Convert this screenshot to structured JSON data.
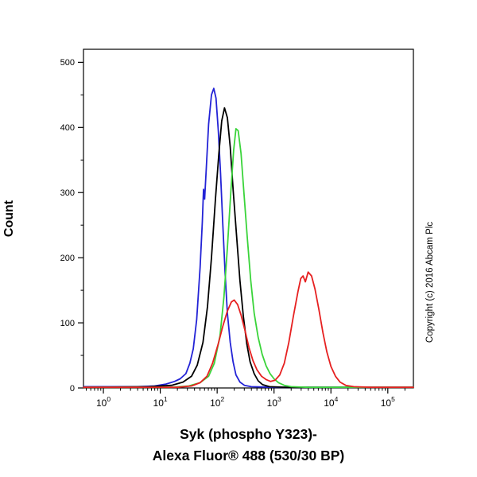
{
  "chart": {
    "ylabel": "Count",
    "xlabel_line1": "Syk (phospho Y323)-",
    "xlabel_line2": "Alexa Fluor® 488 (530/30 BP)",
    "copyright": "Copyright (c) 2016 Abcam Plc"
  },
  "chart_data": {
    "type": "line",
    "subtype": "flow-cytometry-histogram",
    "title": "",
    "xlabel": "Syk (phospho Y323)- Alexa Fluor® 488 (530/30 BP)",
    "ylabel": "Count",
    "x_scale": "log10",
    "grid": false,
    "legend": "none",
    "x_tick_exponents": [
      0,
      1,
      2,
      3,
      4,
      5
    ],
    "y_ticks": [
      0,
      100,
      200,
      300,
      400,
      500
    ],
    "y_minor_step": 50,
    "xlim_log10": [
      -0.35,
      5.45
    ],
    "ylim": [
      0,
      520
    ],
    "axis_color": "#000000",
    "series": [
      {
        "name": "blue",
        "color": "#2323d6",
        "peak": {
          "x_log10": 1.94,
          "count": 460
        },
        "points": [
          [
            -0.35,
            2
          ],
          [
            0.6,
            2
          ],
          [
            0.9,
            3
          ],
          [
            1.1,
            6
          ],
          [
            1.25,
            10
          ],
          [
            1.35,
            14
          ],
          [
            1.45,
            22
          ],
          [
            1.52,
            38
          ],
          [
            1.58,
            60
          ],
          [
            1.64,
            105
          ],
          [
            1.7,
            185
          ],
          [
            1.74,
            255
          ],
          [
            1.76,
            305
          ],
          [
            1.78,
            290
          ],
          [
            1.81,
            340
          ],
          [
            1.85,
            405
          ],
          [
            1.9,
            450
          ],
          [
            1.94,
            460
          ],
          [
            1.98,
            445
          ],
          [
            2.02,
            395
          ],
          [
            2.06,
            330
          ],
          [
            2.1,
            250
          ],
          [
            2.14,
            175
          ],
          [
            2.18,
            115
          ],
          [
            2.23,
            70
          ],
          [
            2.28,
            40
          ],
          [
            2.33,
            20
          ],
          [
            2.4,
            9
          ],
          [
            2.48,
            4
          ],
          [
            2.6,
            2
          ],
          [
            3.0,
            1
          ],
          [
            4.0,
            1
          ],
          [
            5.45,
            1
          ]
        ]
      },
      {
        "name": "black",
        "color": "#000000",
        "peak": {
          "x_log10": 2.13,
          "count": 430
        },
        "points": [
          [
            -0.35,
            1
          ],
          [
            0.8,
            2
          ],
          [
            1.2,
            4
          ],
          [
            1.4,
            9
          ],
          [
            1.55,
            18
          ],
          [
            1.65,
            35
          ],
          [
            1.75,
            70
          ],
          [
            1.83,
            125
          ],
          [
            1.9,
            200
          ],
          [
            1.97,
            290
          ],
          [
            2.03,
            360
          ],
          [
            2.08,
            410
          ],
          [
            2.13,
            430
          ],
          [
            2.18,
            415
          ],
          [
            2.23,
            370
          ],
          [
            2.28,
            305
          ],
          [
            2.34,
            235
          ],
          [
            2.4,
            165
          ],
          [
            2.46,
            110
          ],
          [
            2.52,
            68
          ],
          [
            2.58,
            40
          ],
          [
            2.65,
            22
          ],
          [
            2.72,
            11
          ],
          [
            2.8,
            5
          ],
          [
            2.92,
            2
          ],
          [
            3.2,
            1
          ],
          [
            5.45,
            1
          ]
        ]
      },
      {
        "name": "green",
        "color": "#3ad43a",
        "peak": {
          "x_log10": 2.33,
          "count": 398
        },
        "points": [
          [
            -0.35,
            1
          ],
          [
            1.2,
            1
          ],
          [
            1.5,
            3
          ],
          [
            1.7,
            8
          ],
          [
            1.85,
            18
          ],
          [
            1.95,
            38
          ],
          [
            2.05,
            80
          ],
          [
            2.12,
            140
          ],
          [
            2.18,
            215
          ],
          [
            2.24,
            300
          ],
          [
            2.29,
            365
          ],
          [
            2.33,
            398
          ],
          [
            2.37,
            395
          ],
          [
            2.42,
            360
          ],
          [
            2.47,
            300
          ],
          [
            2.53,
            230
          ],
          [
            2.59,
            165
          ],
          [
            2.65,
            115
          ],
          [
            2.72,
            78
          ],
          [
            2.79,
            52
          ],
          [
            2.86,
            34
          ],
          [
            2.93,
            22
          ],
          [
            3.0,
            14
          ],
          [
            3.08,
            8
          ],
          [
            3.18,
            4
          ],
          [
            3.3,
            2
          ],
          [
            3.6,
            1
          ],
          [
            5.45,
            1
          ]
        ]
      },
      {
        "name": "red",
        "color": "#e62020",
        "peak": {
          "x_log10": 3.6,
          "count": 178
        },
        "points": [
          [
            -0.35,
            1
          ],
          [
            1.3,
            1
          ],
          [
            1.55,
            3
          ],
          [
            1.7,
            8
          ],
          [
            1.82,
            18
          ],
          [
            1.92,
            38
          ],
          [
            2.02,
            68
          ],
          [
            2.1,
            95
          ],
          [
            2.18,
            118
          ],
          [
            2.25,
            132
          ],
          [
            2.3,
            135
          ],
          [
            2.36,
            128
          ],
          [
            2.42,
            112
          ],
          [
            2.49,
            88
          ],
          [
            2.56,
            62
          ],
          [
            2.63,
            42
          ],
          [
            2.7,
            28
          ],
          [
            2.78,
            18
          ],
          [
            2.86,
            13
          ],
          [
            2.94,
            10
          ],
          [
            3.02,
            12
          ],
          [
            3.1,
            20
          ],
          [
            3.18,
            38
          ],
          [
            3.26,
            70
          ],
          [
            3.34,
            110
          ],
          [
            3.42,
            148
          ],
          [
            3.47,
            168
          ],
          [
            3.51,
            172
          ],
          [
            3.55,
            163
          ],
          [
            3.6,
            178
          ],
          [
            3.66,
            172
          ],
          [
            3.72,
            152
          ],
          [
            3.79,
            120
          ],
          [
            3.86,
            85
          ],
          [
            3.93,
            55
          ],
          [
            4.0,
            33
          ],
          [
            4.08,
            18
          ],
          [
            4.16,
            9
          ],
          [
            4.26,
            4
          ],
          [
            4.4,
            2
          ],
          [
            4.7,
            1
          ],
          [
            5.45,
            1
          ]
        ]
      }
    ]
  }
}
